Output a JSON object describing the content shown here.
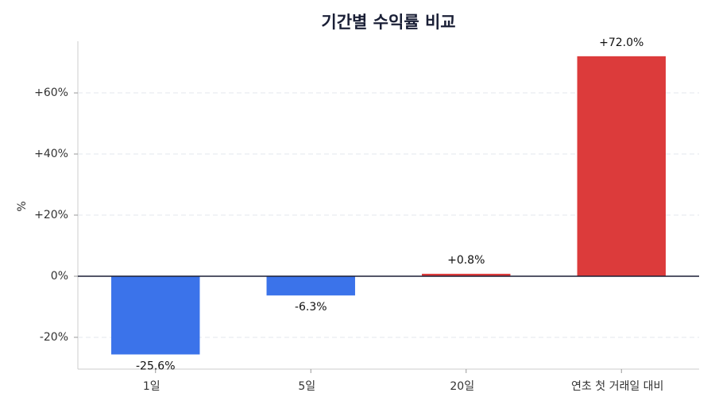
{
  "chart_data": {
    "type": "bar",
    "title": "기간별 수익률 비교",
    "y_label": "%",
    "categories": [
      "1일",
      "5일",
      "20일",
      "연초 첫 거래일 대비"
    ],
    "values": [
      -25.6,
      -6.3,
      0.8,
      72.0
    ],
    "value_labels": [
      "-25.6%",
      "-6.3%",
      "+0.8%",
      "+72.0%"
    ],
    "colors": [
      "#3b73ea",
      "#3b73ea",
      "#dc3b3b",
      "#dc3b3b"
    ],
    "ylim": [
      -30.4,
      76.9
    ],
    "yticks": [
      {
        "value": -20,
        "label": "-20%"
      },
      {
        "value": 0,
        "label": "0%"
      },
      {
        "value": 20,
        "label": "+20%"
      },
      {
        "value": 40,
        "label": "+40%"
      },
      {
        "value": 60,
        "label": "+60%"
      }
    ],
    "grid": true
  }
}
